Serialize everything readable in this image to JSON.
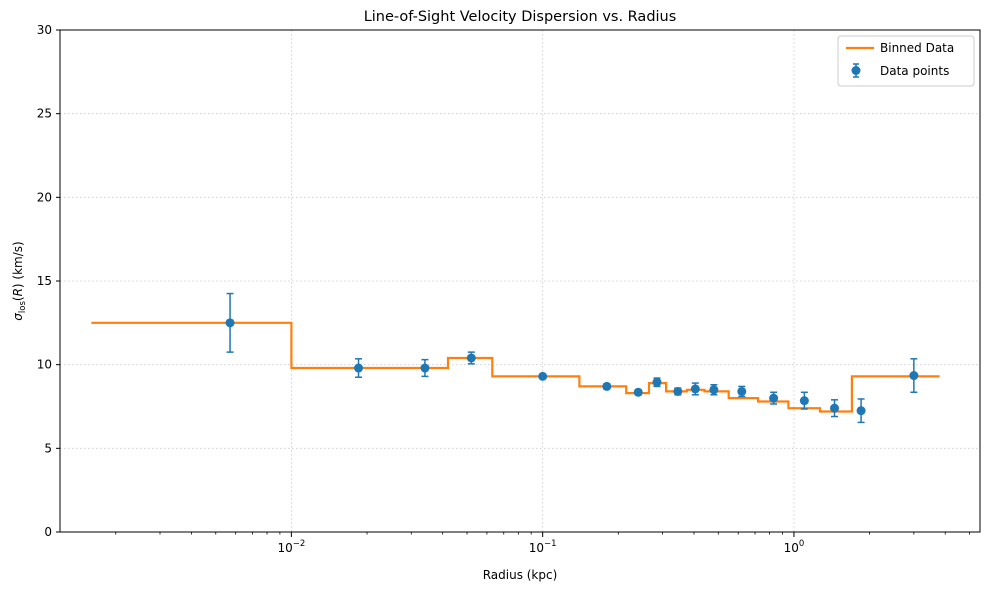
{
  "chart_data": {
    "type": "line",
    "title": "Line-of-Sight Velocity Dispersion vs. Radius",
    "xlabel": "Radius (kpc)",
    "ylabel": "σlos(R) (km/s)",
    "xscale": "log",
    "xlim": [
      0.0012,
      5.5
    ],
    "ylim": [
      0,
      30
    ],
    "grid": true,
    "legend_position": "top-right",
    "x_ticks": [
      {
        "value": 0.01,
        "base": "10",
        "exp": "−2"
      },
      {
        "value": 0.1,
        "base": "10",
        "exp": "−1"
      },
      {
        "value": 1,
        "base": "10",
        "exp": "0"
      }
    ],
    "y_ticks": [
      {
        "value": 0,
        "label": "0"
      },
      {
        "value": 5,
        "label": "5"
      },
      {
        "value": 10,
        "label": "10"
      },
      {
        "value": 15,
        "label": "15"
      },
      {
        "value": 20,
        "label": "20"
      },
      {
        "value": 25,
        "label": "25"
      },
      {
        "value": 30,
        "label": "30"
      }
    ],
    "series": [
      {
        "name": "Binned Data",
        "kind": "step",
        "color": "#ff7f0e",
        "edges": [
          0.0016,
          0.01,
          0.042,
          0.063,
          0.14,
          0.215,
          0.265,
          0.31,
          0.375,
          0.44,
          0.55,
          0.72,
          0.95,
          1.27,
          1.7,
          2.08,
          3.8
        ],
        "values": [
          12.5,
          9.8,
          10.4,
          9.3,
          8.7,
          8.3,
          8.9,
          8.4,
          8.5,
          8.4,
          8.0,
          7.8,
          7.4,
          7.2,
          9.3,
          9.3
        ]
      },
      {
        "name": "Data points",
        "kind": "errorbar",
        "color": "#1f77b4",
        "x": [
          0.0057,
          0.0185,
          0.034,
          0.052,
          0.1,
          0.18,
          0.24,
          0.285,
          0.345,
          0.405,
          0.48,
          0.62,
          0.83,
          1.1,
          1.45,
          1.85,
          3.0
        ],
        "y": [
          12.5,
          9.8,
          9.8,
          10.4,
          9.3,
          8.7,
          8.35,
          8.95,
          8.4,
          8.55,
          8.5,
          8.4,
          8.0,
          7.85,
          7.4,
          7.25,
          9.35
        ],
        "yerr": [
          1.75,
          0.55,
          0.5,
          0.35,
          0.12,
          0.15,
          0.15,
          0.25,
          0.2,
          0.35,
          0.3,
          0.3,
          0.35,
          0.5,
          0.5,
          0.7,
          1.0
        ]
      }
    ]
  }
}
